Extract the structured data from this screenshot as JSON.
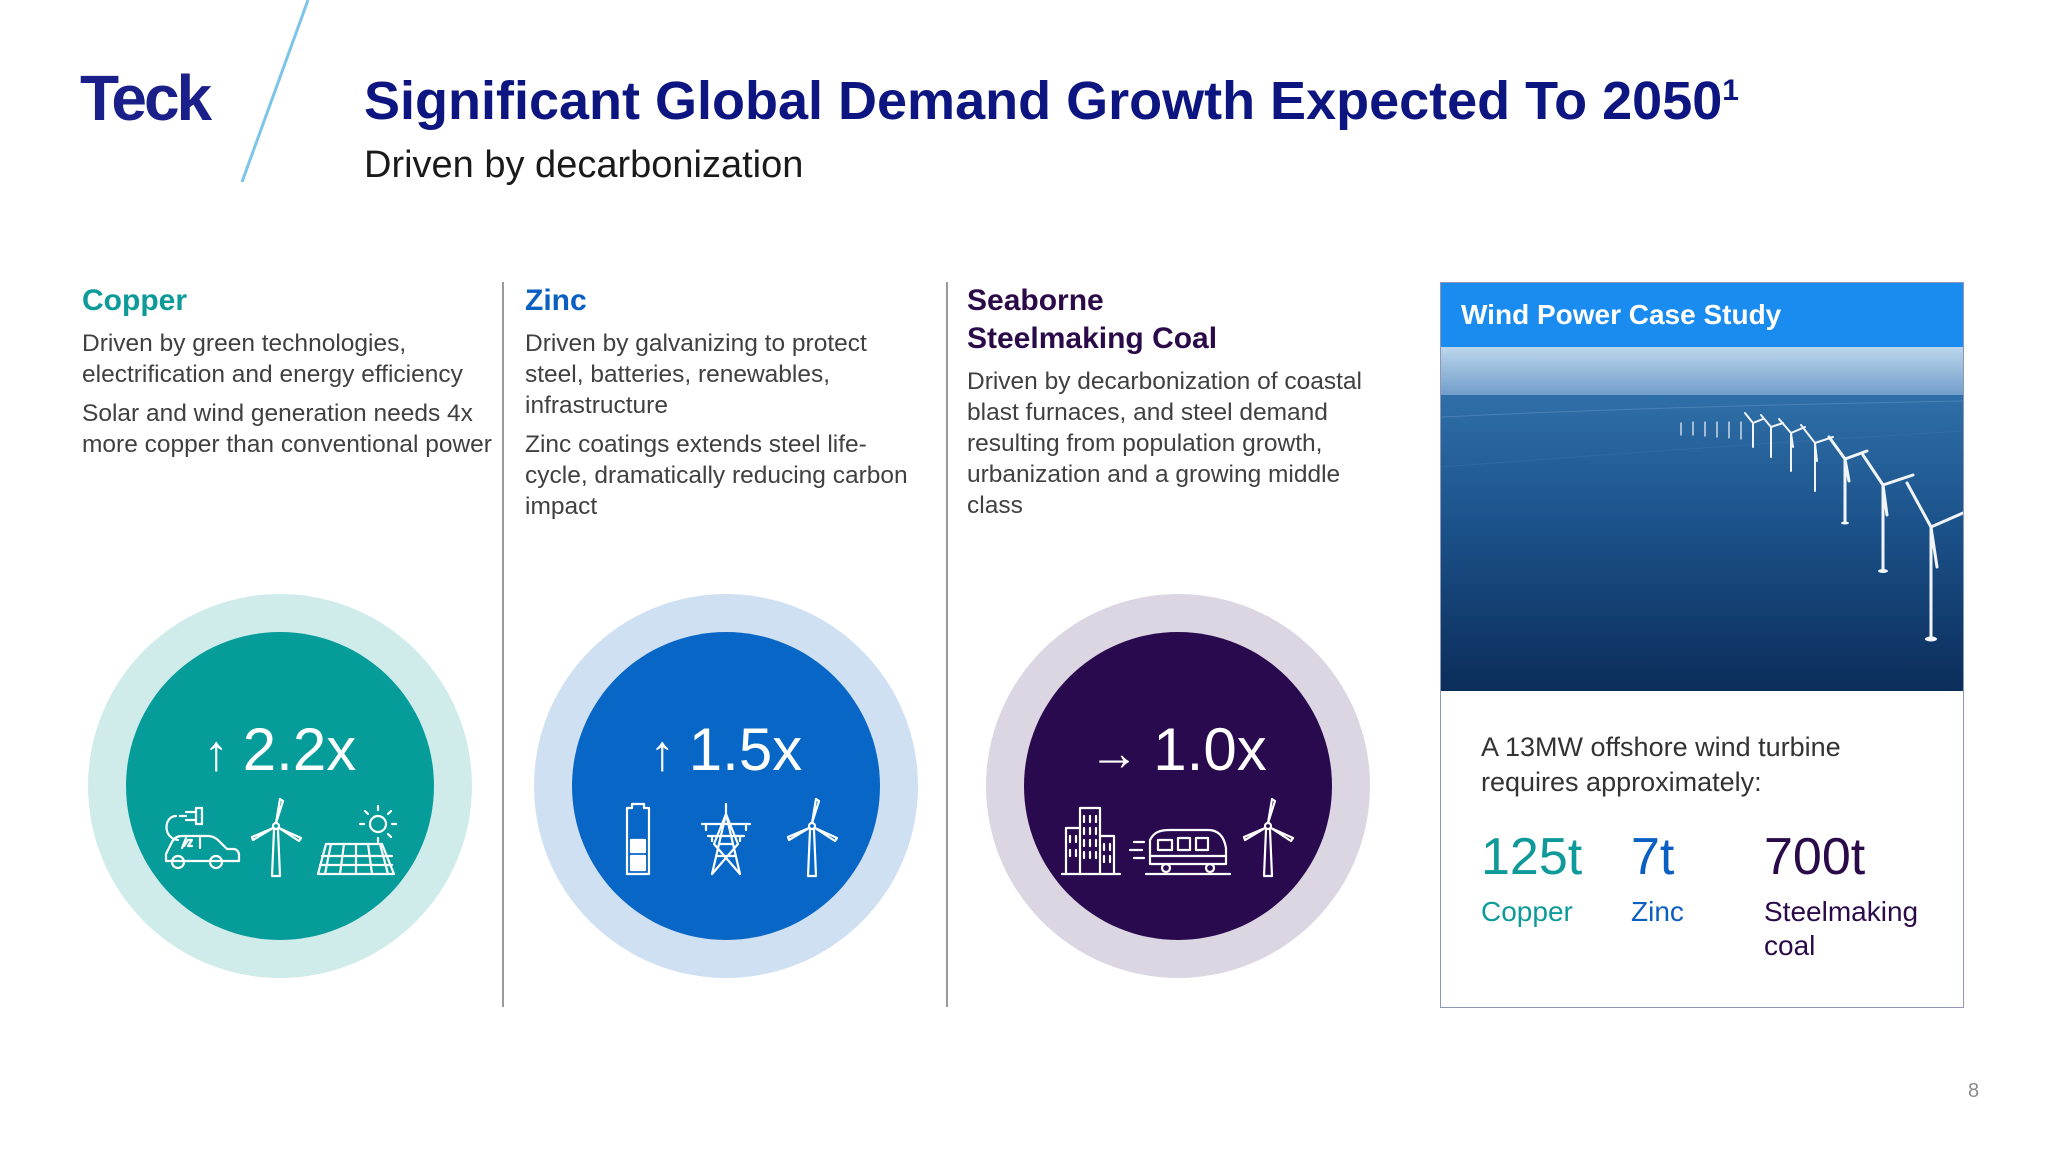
{
  "header": {
    "logo": "Teck",
    "title": "Significant Global Demand Growth Expected To 2050",
    "title_superscript": "1",
    "subtitle": "Driven by decarbonization"
  },
  "columns": [
    {
      "heading_lines": [
        "Copper"
      ],
      "paragraphs": [
        "Driven by green technologies, electrification and energy efficiency",
        "Solar and wind generation needs 4x more copper than conventional power"
      ],
      "arrow": "↑",
      "multiplier": "2.2x",
      "icons": [
        "ev-charging-car-icon",
        "wind-turbine-icon",
        "solar-panel-icon"
      ],
      "color_heading": "#0f9a9a",
      "color_core": "#069c9a",
      "color_ring": "#cfeceb"
    },
    {
      "heading_lines": [
        "Zinc"
      ],
      "paragraphs": [
        "Driven by galvanizing to protect steel, batteries, renewables, infrastructure",
        "Zinc coatings extends steel life-cycle, dramatically reducing carbon impact"
      ],
      "arrow": "↑",
      "multiplier": "1.5x",
      "icons": [
        "battery-icon",
        "power-pylon-icon",
        "wind-turbine-icon"
      ],
      "color_heading": "#0b5fc2",
      "color_core": "#0866c6",
      "color_ring": "#cfe0f2"
    },
    {
      "heading_lines": [
        "Seaborne",
        "Steelmaking Coal"
      ],
      "paragraphs": [
        "Driven by decarbonization of coastal blast furnaces, and steel demand resulting from population growth, urbanization and a growing middle class"
      ],
      "arrow": "→",
      "multiplier": "1.0x",
      "icons": [
        "city-buildings-icon",
        "train-icon",
        "wind-turbine-icon"
      ],
      "color_heading": "#2b0a4a",
      "color_core": "#2a0a4e",
      "color_ring": "#dcd5e2"
    }
  ],
  "case_study": {
    "title": "Wind Power Case Study",
    "image": "offshore-wind-farm-photo",
    "description": "A 13MW offshore wind turbine requires approximately:",
    "stats": [
      {
        "value": "125t",
        "label_lines": [
          "Copper"
        ],
        "color": "#0f9a9a"
      },
      {
        "value": "7t",
        "label_lines": [
          "Zinc"
        ],
        "color": "#0b5fc2"
      },
      {
        "value": "700t",
        "label_lines": [
          "Steelmaking",
          "coal"
        ],
        "color": "#2b0a4a"
      }
    ]
  },
  "page_number": "8",
  "colors": {
    "navy_title": "#0d1580",
    "logo": "#1a1f8a",
    "slash": "#7cc4e8",
    "case_header": "#1a8cf0"
  }
}
